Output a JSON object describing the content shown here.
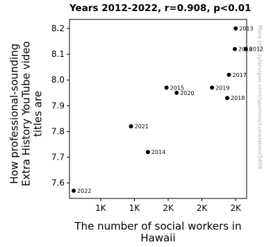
{
  "chart_data": {
    "type": "scatter",
    "title": "Years 2012-2022, r=0.908, p<0.01",
    "xlabel": "The number of social workers in Hawaii",
    "ylabel": "How professional-sounding Extra History YouTube video titles are",
    "xlim": [
      1015,
      2065
    ],
    "ylim": [
      7.54,
      8.235
    ],
    "x_ticks": [
      {
        "value": 1200,
        "label": "1K"
      },
      {
        "value": 1400,
        "label": "1K"
      },
      {
        "value": 1600,
        "label": "2K"
      },
      {
        "value": 1800,
        "label": "2K"
      },
      {
        "value": 2000,
        "label": "2K"
      }
    ],
    "y_ticks": [
      7.6,
      7.7,
      7.8,
      7.9,
      8.0,
      8.1,
      8.2
    ],
    "points": [
      {
        "label": "2012",
        "x": 2060,
        "y": 8.12
      },
      {
        "label": "2013",
        "x": 2000,
        "y": 8.2
      },
      {
        "label": "2014",
        "x": 1480,
        "y": 7.72
      },
      {
        "label": "2015",
        "x": 1590,
        "y": 7.97
      },
      {
        "label": "2016",
        "x": 1995,
        "y": 8.12
      },
      {
        "label": "2017",
        "x": 1960,
        "y": 8.02
      },
      {
        "label": "2018",
        "x": 1950,
        "y": 7.93
      },
      {
        "label": "2019",
        "x": 1860,
        "y": 7.97
      },
      {
        "label": "2020",
        "x": 1650,
        "y": 7.95
      },
      {
        "label": "2021",
        "x": 1380,
        "y": 7.82
      },
      {
        "label": "2022",
        "x": 1040,
        "y": 7.57
      }
    ],
    "grid": false,
    "point_color": "#000000"
  },
  "watermark": "More info: tylervigen.com/spurious/correlation/5406"
}
